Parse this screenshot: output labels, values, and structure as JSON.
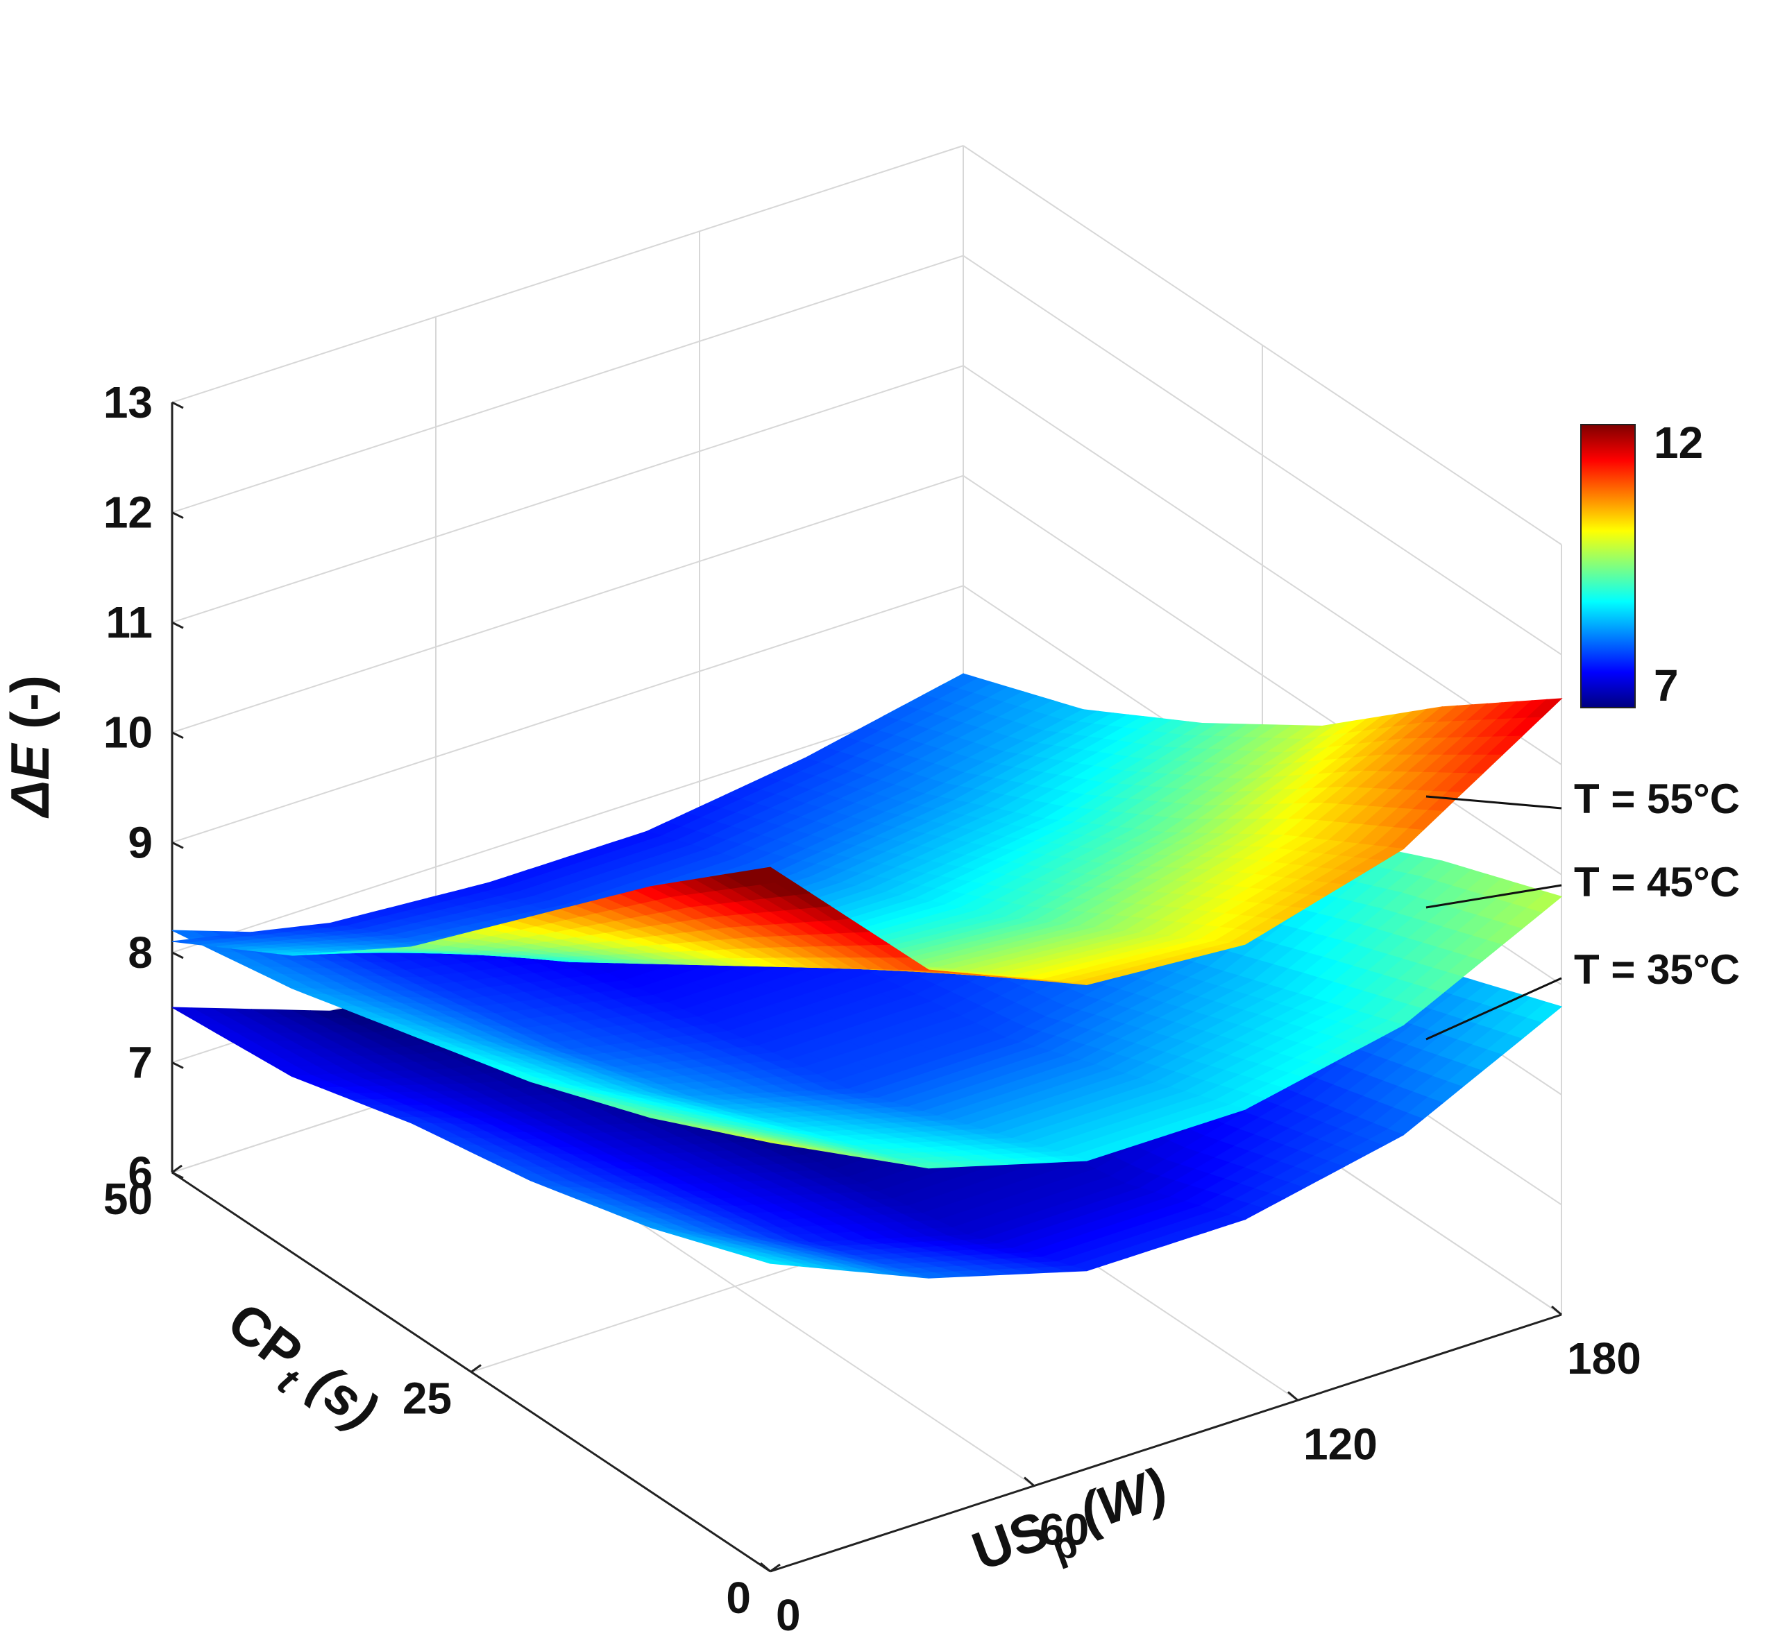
{
  "chart_data": {
    "type": "surface3d",
    "title": "",
    "zlabel": {
      "main": "ΔE",
      "rest": " (-)"
    },
    "xlabel": {
      "main": "CP",
      "sub": "t",
      "rest": " (s)"
    },
    "ylabel": {
      "main": "US",
      "sub": "p",
      "rest": " (W)"
    },
    "x_axis": {
      "range": [
        0,
        50
      ],
      "ticks": [
        0,
        25,
        50
      ],
      "tick_labels": [
        "0",
        "25",
        "50"
      ]
    },
    "y_axis": {
      "range": [
        0,
        180
      ],
      "ticks": [
        0,
        60,
        120,
        180
      ],
      "tick_labels": [
        "0",
        "60",
        "120",
        "180"
      ]
    },
    "z_axis": {
      "range": [
        6,
        13
      ],
      "ticks": [
        6,
        7,
        8,
        9,
        10,
        11,
        12,
        13
      ],
      "tick_labels": [
        "6",
        "7",
        "8",
        "9",
        "10",
        "11",
        "12",
        "13"
      ]
    },
    "colorbar": {
      "min": 7,
      "max": 12,
      "tick_labels": [
        "12",
        "7"
      ],
      "colormap": "jet"
    },
    "grid": true,
    "surfaces": [
      {
        "name": "T = 35°C",
        "label": "T = 35°C",
        "x": [
          0,
          10,
          20,
          30,
          40,
          50
        ],
        "y": [
          0,
          36,
          72,
          108,
          144,
          180
        ],
        "z": [
          [
            8.8,
            8.4,
            8.1,
            7.9,
            7.6,
            7.5
          ],
          [
            8.2,
            7.8,
            7.6,
            7.4,
            7.2,
            7.0
          ],
          [
            7.8,
            7.4,
            7.2,
            7.0,
            6.9,
            6.8
          ],
          [
            7.8,
            7.4,
            7.2,
            7.0,
            6.9,
            6.8
          ],
          [
            8.1,
            7.8,
            7.5,
            7.3,
            7.1,
            7.0
          ],
          [
            8.8,
            8.4,
            8.0,
            7.8,
            7.6,
            7.4
          ]
        ]
      },
      {
        "name": "T = 45°C",
        "label": "T = 45°C",
        "x": [
          0,
          10,
          20,
          30,
          40,
          50
        ],
        "y": [
          0,
          36,
          72,
          108,
          144,
          180
        ],
        "z": [
          [
            9.9,
            9.4,
            9.0,
            8.7,
            8.4,
            8.2
          ],
          [
            9.2,
            8.8,
            8.4,
            8.1,
            7.9,
            7.7
          ],
          [
            8.8,
            8.4,
            8.0,
            7.8,
            7.6,
            7.4
          ],
          [
            8.8,
            8.4,
            8.0,
            7.8,
            7.6,
            7.4
          ],
          [
            9.1,
            8.7,
            8.3,
            8.0,
            7.8,
            7.6
          ],
          [
            9.8,
            9.4,
            8.9,
            8.6,
            8.4,
            8.2
          ]
        ]
      },
      {
        "name": "T = 55°C",
        "label": "T = 55°C",
        "x": [
          0,
          10,
          20,
          30,
          40,
          50
        ],
        "y": [
          0,
          36,
          72,
          108,
          144,
          180
        ],
        "z": [
          [
            12.4,
            11.5,
            10.5,
            9.5,
            8.7,
            8.1
          ],
          [
            11.0,
            10.3,
            9.6,
            8.9,
            8.3,
            7.8
          ],
          [
            10.4,
            9.8,
            9.2,
            8.6,
            8.1,
            7.7
          ],
          [
            10.3,
            9.7,
            9.1,
            8.6,
            8.1,
            7.7
          ],
          [
            10.7,
            10.1,
            9.4,
            8.8,
            8.3,
            7.9
          ],
          [
            11.6,
            10.8,
            9.9,
            9.2,
            8.6,
            8.2
          ]
        ]
      }
    ]
  }
}
